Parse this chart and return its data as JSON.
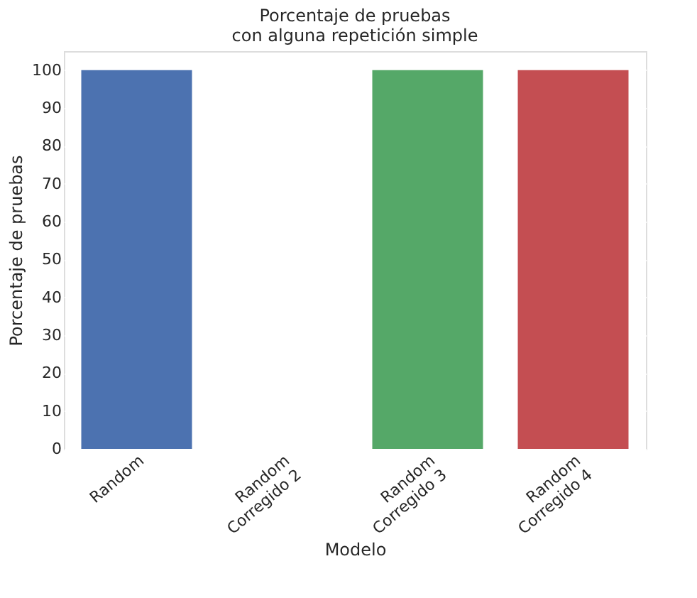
{
  "chart_data": {
    "type": "bar",
    "title": "Porcentaje de pruebas\ncon alguna repetición simple",
    "xlabel": "Modelo",
    "ylabel": "Porcentaje de pruebas",
    "categories": [
      "Random",
      "Random\nCorregido 2",
      "Random\nCorregido 3",
      "Random\nCorregido 4"
    ],
    "values": [
      100,
      0,
      100,
      100
    ],
    "colors": [
      "#4c72b0",
      "#dd8452",
      "#55a868",
      "#c44e52"
    ],
    "ylim": [
      0,
      105
    ],
    "yticks": [
      0,
      10,
      20,
      30,
      40,
      50,
      60,
      70,
      80,
      90,
      100
    ],
    "grid": "y"
  }
}
